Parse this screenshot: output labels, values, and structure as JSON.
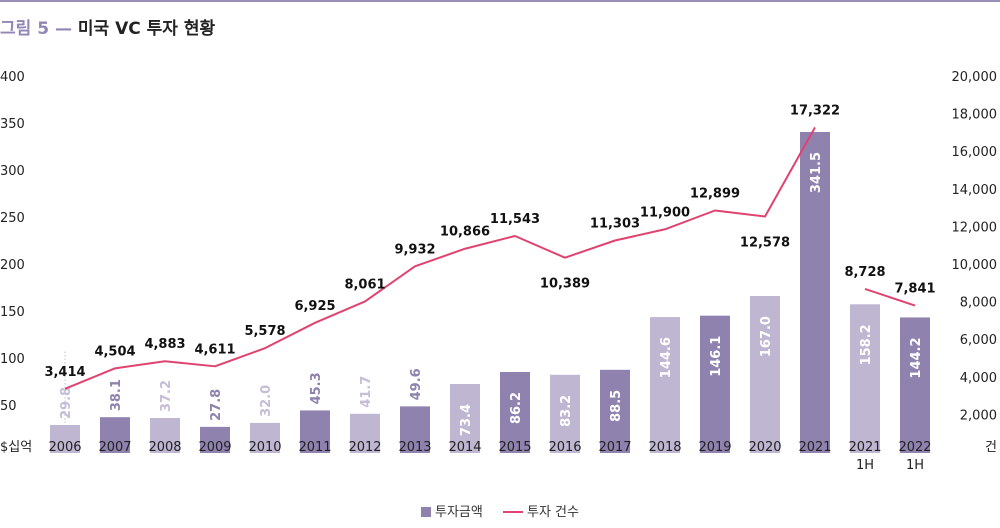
{
  "header": {
    "prefix": "그림 5",
    "separator": "—",
    "title": "미국 VC 투자 현황"
  },
  "chart_data": {
    "type": "bar",
    "title": "미국 VC 투자 현황",
    "categories": [
      "2006",
      "2007",
      "2008",
      "2009",
      "2010",
      "2011",
      "2012",
      "2013",
      "2014",
      "2015",
      "2016",
      "2017",
      "2018",
      "2019",
      "2020",
      "2021",
      "2021 1H",
      "2022 1H"
    ],
    "left_axis": {
      "unit_label": "$십억",
      "range": [
        0,
        400
      ],
      "ticks": [
        "400",
        "350",
        "300",
        "250",
        "200",
        "150",
        "100",
        "50"
      ]
    },
    "right_axis": {
      "unit_label": "건",
      "range": [
        0,
        20000
      ],
      "ticks": [
        "20,000",
        "18,000",
        "16,000",
        "14,000",
        "12,000",
        "10,000",
        "8,000",
        "6,000",
        "4,000",
        "2,000"
      ]
    },
    "series": [
      {
        "name": "투자금액",
        "kind": "bar",
        "axis": "left",
        "values": [
          29.8,
          38.1,
          37.2,
          27.8,
          32.0,
          45.3,
          41.7,
          49.6,
          73.4,
          86.2,
          83.2,
          88.5,
          144.6,
          146.1,
          167.0,
          341.5,
          158.2,
          144.2
        ],
        "labels": [
          "29.8",
          "38.1",
          "37.2",
          "27.8",
          "32.0",
          "45.3",
          "41.7",
          "49.6",
          "73.4",
          "86.2",
          "83.2",
          "88.5",
          "144.6",
          "146.1",
          "167.0",
          "341.5",
          "158.2",
          "144.2"
        ],
        "shade": [
          "light",
          "dark",
          "light",
          "dark",
          "light",
          "dark",
          "light",
          "dark",
          "light",
          "dark",
          "light",
          "dark",
          "light",
          "dark",
          "light",
          "dark",
          "light",
          "dark"
        ]
      },
      {
        "name": "투자 건수",
        "kind": "line",
        "axis": "right",
        "values": [
          3414,
          4504,
          4883,
          4611,
          5578,
          6925,
          8061,
          9932,
          10866,
          11543,
          10389,
          11303,
          11900,
          12899,
          12578,
          17322,
          8728,
          7841
        ],
        "labels": [
          "3,414",
          "4,504",
          "4,883",
          "4,611",
          "5,578",
          "6,925",
          "8,061",
          "9,932",
          "10,866",
          "11,543",
          "10,389",
          "11,303",
          "11,900",
          "12,899",
          "12,578",
          "17,322",
          "8,728",
          "7,841"
        ],
        "segments": [
          [
            0,
            15
          ],
          [
            16,
            17
          ]
        ]
      }
    ],
    "colors": {
      "bar_dark": "#8f82ae",
      "bar_light": "#bfb6d1",
      "line": "#e0436f",
      "label_dark": "#8f82ae",
      "label_light": "#c6bdd6"
    },
    "legend_position": "bottom-center",
    "grid": false
  }
}
